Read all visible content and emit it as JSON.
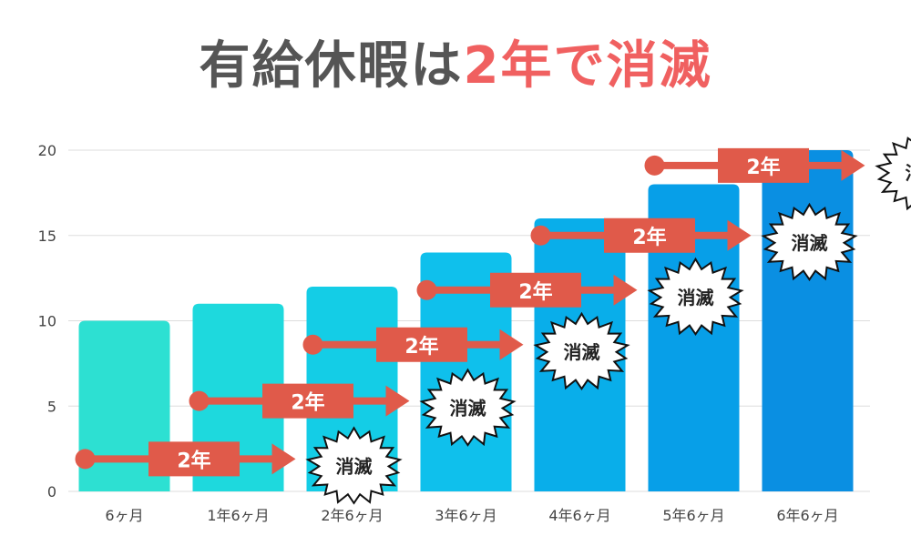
{
  "title": {
    "main": "有給休暇は",
    "accent": "2年で消滅"
  },
  "colors": {
    "title_gray": "#555555",
    "title_red": "#f06060",
    "arrow_red": "#e05a4a",
    "grid": "#dddddd",
    "bars": [
      "#2de0d2",
      "#1ed9dd",
      "#14cde6",
      "#0fc0ec",
      "#09aeea",
      "#079fe8",
      "#0a8fe2"
    ]
  },
  "chart_data": {
    "type": "bar",
    "categories": [
      "6ヶ月",
      "1年6ヶ月",
      "2年6ヶ月",
      "3年6ヶ月",
      "4年6ヶ月",
      "5年6ヶ月",
      "6年6ヶ月"
    ],
    "values": [
      10,
      11,
      12,
      14,
      16,
      18,
      20
    ],
    "ylim": [
      0,
      20
    ],
    "yticks": [
      0,
      5,
      10,
      15,
      20
    ],
    "grid": true,
    "annotations": {
      "arrow_label": "2年",
      "expire_label": "消滅",
      "arrows": [
        {
          "from_category": 0,
          "to_category": 2,
          "y": 1.9
        },
        {
          "from_category": 1,
          "to_category": 3,
          "y": 5.3
        },
        {
          "from_category": 2,
          "to_category": 4,
          "y": 8.6
        },
        {
          "from_category": 3,
          "to_category": 5,
          "y": 11.8
        },
        {
          "from_category": 4,
          "to_category": 6,
          "y": 15.0
        },
        {
          "from_category": 5,
          "to_category": 7,
          "y": 19.1
        }
      ]
    }
  }
}
